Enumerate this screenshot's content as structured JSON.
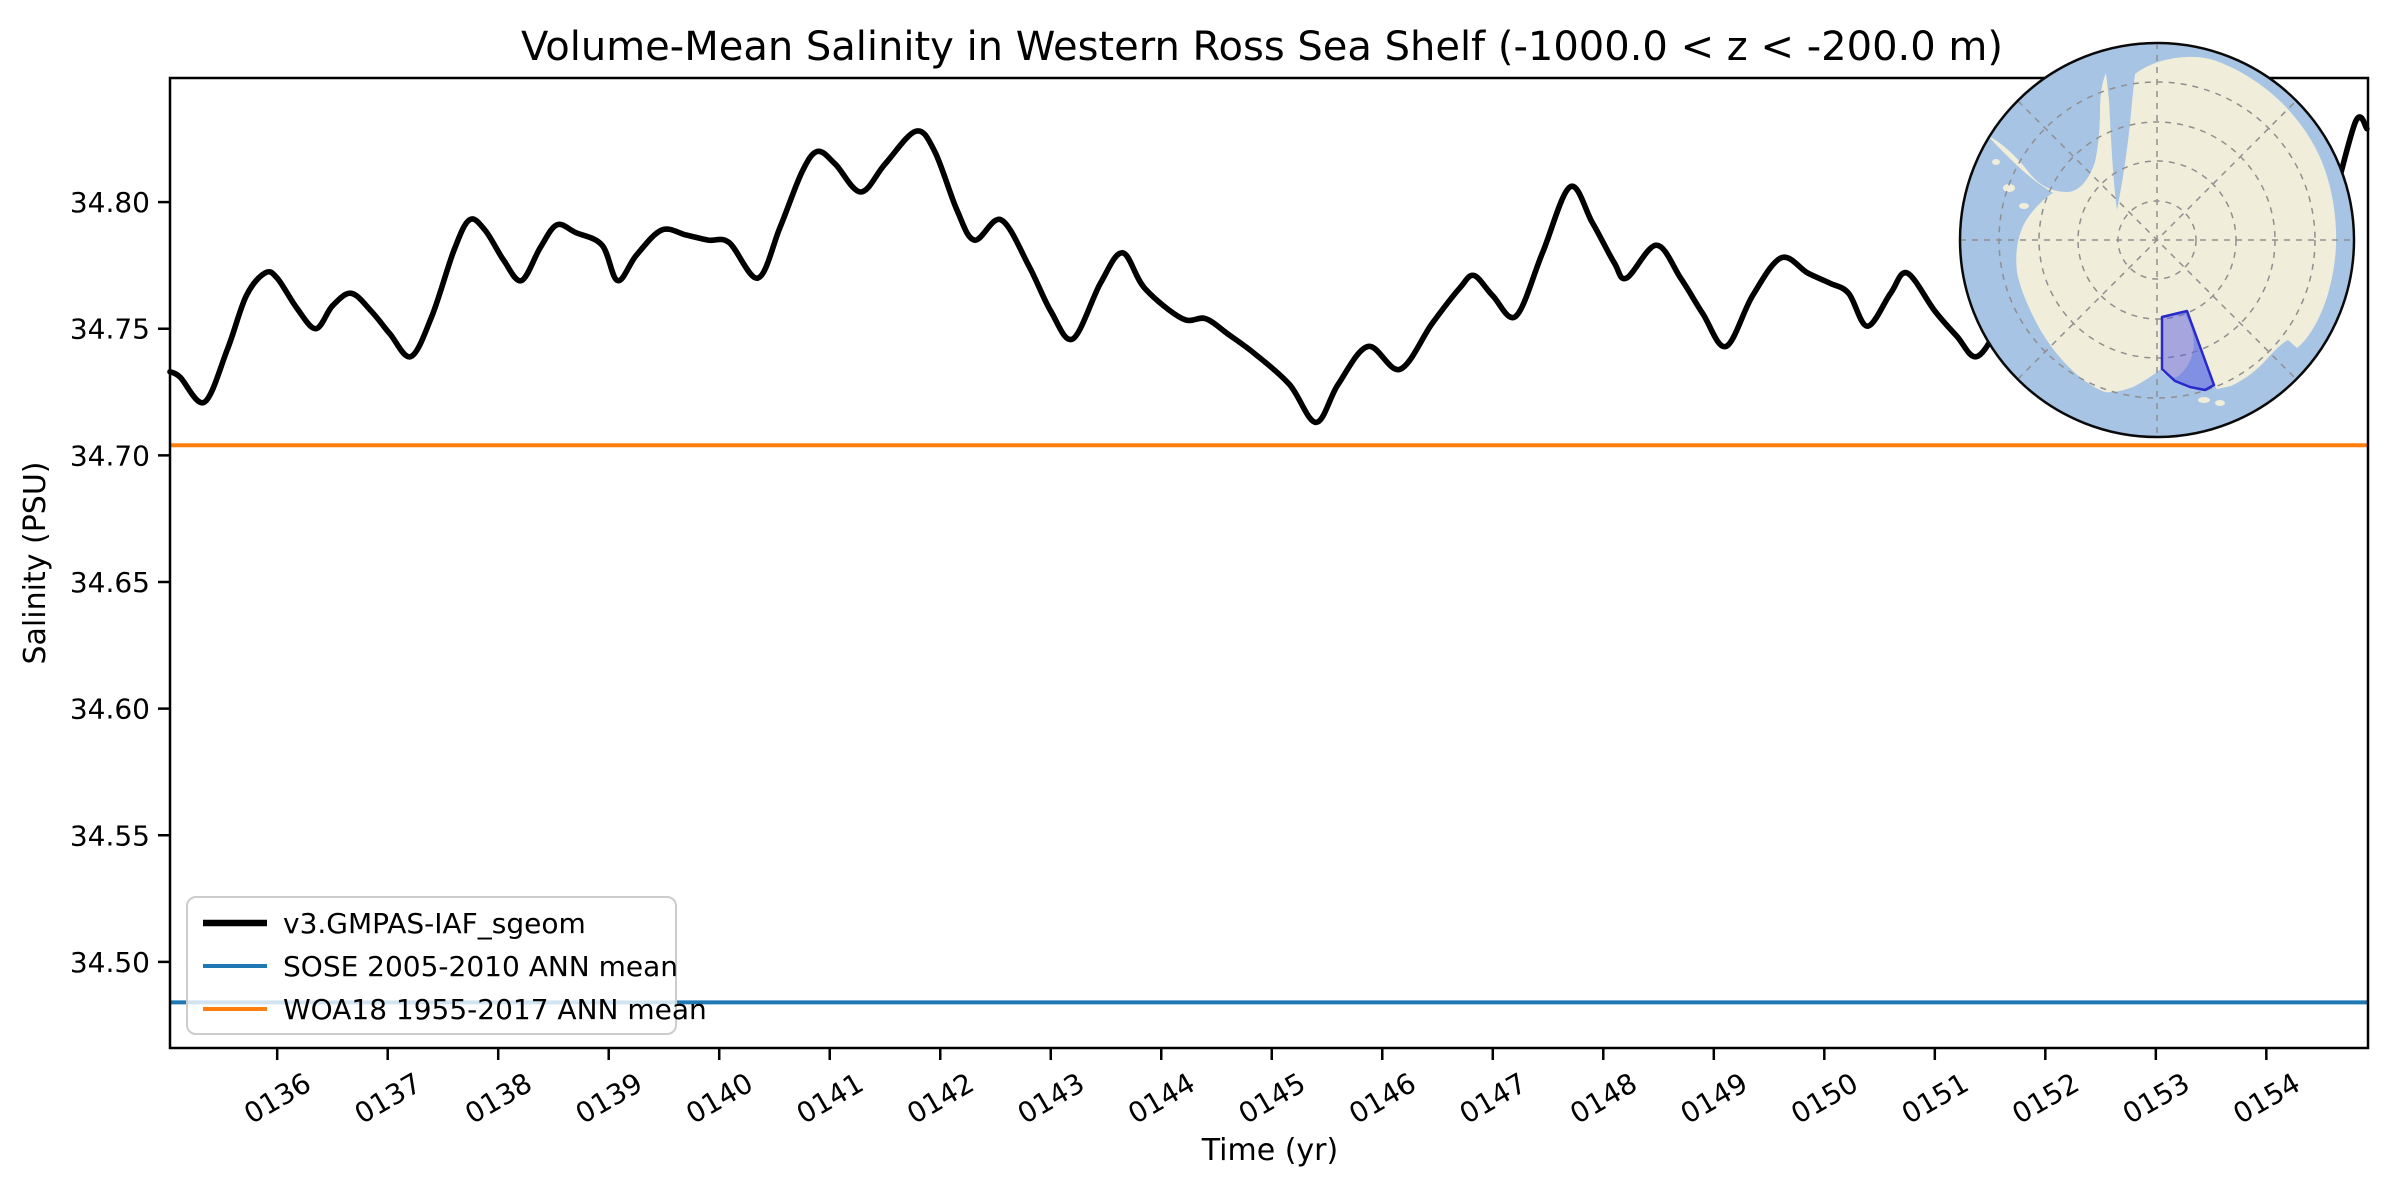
{
  "title": "Volume-Mean Salinity in Western Ross Sea Shelf (-1000.0 < z < -200.0 m)",
  "axes": {
    "xlabel": "Time (yr)",
    "ylabel": "Salinity (PSU)",
    "xlim": [
      135.03,
      154.92
    ],
    "ylim": [
      34.466,
      34.849
    ],
    "x_tick_labels": [
      "0136",
      "0137",
      "0138",
      "0139",
      "0140",
      "0141",
      "0142",
      "0143",
      "0144",
      "0145",
      "0146",
      "0147",
      "0148",
      "0149",
      "0150",
      "0151",
      "0152",
      "0153",
      "0154"
    ],
    "y_tick_labels": [
      "34.50",
      "34.55",
      "34.60",
      "34.65",
      "34.70",
      "34.75",
      "34.80"
    ],
    "y_tick_values": [
      34.5,
      34.55,
      34.6,
      34.65,
      34.7,
      34.75,
      34.8
    ],
    "x_tick_rotation_deg": 30,
    "grid": false
  },
  "chart_data": {
    "type": "line",
    "title": "Volume-Mean Salinity in Western Ross Sea Shelf (-1000.0 < z < -200.0 m)",
    "xlabel": "Time (yr)",
    "ylabel": "Salinity (PSU)",
    "xlim": [
      135.03,
      154.92
    ],
    "ylim": [
      34.466,
      34.849
    ],
    "legend_position": "lower left",
    "series": [
      {
        "name": "v3.GMPAS-IAF_sgeom",
        "color": "#000000",
        "linewidth": 5.6,
        "x": [
          135.03,
          135.12,
          135.34,
          135.55,
          135.72,
          135.89,
          136.0,
          136.18,
          136.35,
          136.5,
          136.67,
          136.85,
          137.02,
          137.21,
          137.4,
          137.6,
          137.74,
          137.88,
          138.05,
          138.21,
          138.38,
          138.53,
          138.7,
          138.94,
          139.08,
          139.25,
          139.48,
          139.7,
          139.9,
          140.09,
          140.35,
          140.55,
          140.75,
          140.89,
          141.05,
          141.28,
          141.5,
          141.78,
          141.95,
          142.15,
          142.31,
          142.55,
          142.8,
          143.0,
          143.2,
          143.45,
          143.65,
          143.85,
          144.19,
          144.4,
          144.6,
          144.85,
          145.16,
          145.4,
          145.6,
          145.87,
          146.16,
          146.45,
          146.7,
          146.83,
          147.0,
          147.21,
          147.45,
          147.7,
          147.9,
          148.1,
          148.21,
          148.48,
          148.7,
          148.9,
          149.11,
          149.35,
          149.61,
          149.85,
          150.05,
          150.22,
          150.39,
          150.6,
          150.75,
          151.0,
          151.2,
          151.38,
          151.6,
          151.85,
          152.1,
          152.4,
          152.7,
          153.0,
          153.3,
          153.6,
          153.9,
          154.2,
          154.45,
          154.6,
          154.81,
          154.91
        ],
        "y": [
          34.733,
          34.731,
          34.721,
          34.742,
          34.763,
          34.772,
          34.77,
          34.758,
          34.75,
          34.759,
          34.764,
          34.757,
          34.748,
          34.739,
          34.755,
          34.781,
          34.793,
          34.789,
          34.777,
          34.769,
          34.782,
          34.791,
          34.788,
          34.783,
          34.769,
          34.779,
          34.789,
          34.787,
          34.785,
          34.784,
          34.77,
          34.79,
          34.812,
          34.82,
          34.815,
          34.804,
          34.815,
          34.828,
          34.82,
          34.797,
          34.785,
          34.793,
          34.775,
          34.757,
          34.746,
          34.768,
          34.78,
          34.766,
          34.754,
          34.754,
          34.748,
          34.74,
          34.728,
          34.713,
          34.728,
          34.743,
          34.734,
          34.752,
          34.766,
          34.771,
          34.763,
          34.755,
          34.78,
          34.806,
          34.792,
          34.776,
          34.77,
          34.783,
          34.77,
          34.756,
          34.743,
          34.763,
          34.778,
          34.772,
          34.768,
          34.764,
          34.751,
          34.764,
          34.772,
          34.757,
          34.747,
          34.739,
          34.752,
          34.768,
          34.758,
          34.748,
          34.772,
          34.762,
          34.778,
          34.768,
          34.78,
          34.772,
          34.786,
          34.8,
          34.832,
          34.829
        ]
      },
      {
        "name": "SOSE 2005-2010 ANN mean",
        "color": "#1f77b4",
        "linewidth": 4,
        "constant": 34.484
      },
      {
        "name": "WOA18 1955-2017 ANN mean",
        "color": "#ff7f0e",
        "linewidth": 4,
        "constant": 34.704
      }
    ]
  },
  "legend": {
    "entries": [
      {
        "label": "v3.GMPAS-IAF_sgeom",
        "color": "#000000",
        "linewidth": 6.5
      },
      {
        "label": "SOSE 2005-2010 ANN mean",
        "color": "#1f77b4",
        "linewidth": 4
      },
      {
        "label": "WOA18 1955-2017 ANN mean",
        "color": "#ff7f0e",
        "linewidth": 4
      }
    ]
  },
  "inset_map": {
    "description": "South polar stereographic map of Antarctica with the Western Ross Sea Shelf region highlighted",
    "highlighted_region": "Western Ross Sea Shelf",
    "colors": {
      "ocean": "#a7c4e4",
      "land": "#f0eedb",
      "graticule": "#8f8f8f",
      "highlight_fill": "#5b5bdf",
      "highlight_edge": "#2929cc",
      "outline": "#0a0a0a"
    }
  }
}
